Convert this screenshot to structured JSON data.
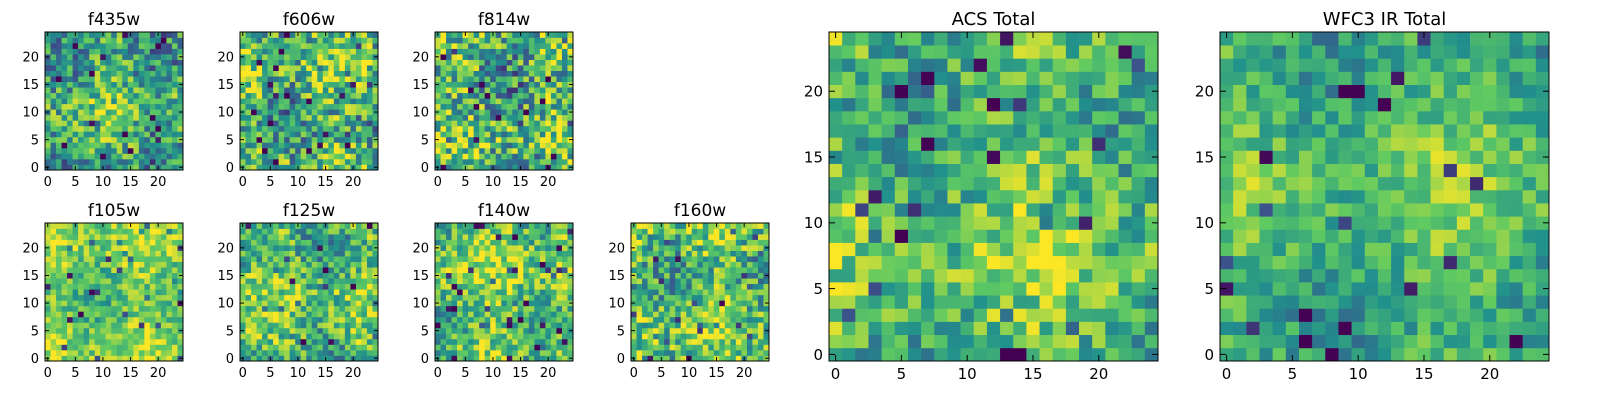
{
  "chart_data": [
    {
      "type": "heatmap",
      "title": "f435w",
      "xlim": [
        0,
        24
      ],
      "ylim": [
        0,
        24
      ],
      "xticks": [
        "0",
        "5",
        "10",
        "15",
        "20"
      ],
      "yticks": [
        "0",
        "5",
        "10",
        "15",
        "20"
      ],
      "mean": 0.62,
      "spread": 0.3,
      "seed": 11
    },
    {
      "type": "heatmap",
      "title": "f606w",
      "xlim": [
        0,
        24
      ],
      "ylim": [
        0,
        24
      ],
      "xticks": [
        "0",
        "5",
        "10",
        "15",
        "20"
      ],
      "yticks": [
        "0",
        "5",
        "10",
        "15",
        "20"
      ],
      "mean": 0.66,
      "spread": 0.34,
      "seed": 23
    },
    {
      "type": "heatmap",
      "title": "f814w",
      "xlim": [
        0,
        24
      ],
      "ylim": [
        0,
        24
      ],
      "xticks": [
        "0",
        "5",
        "10",
        "15",
        "20"
      ],
      "yticks": [
        "0",
        "5",
        "10",
        "15",
        "20"
      ],
      "mean": 0.64,
      "spread": 0.36,
      "seed": 37
    },
    {
      "type": "heatmap",
      "title": "f105w",
      "xlim": [
        0,
        24
      ],
      "ylim": [
        0,
        24
      ],
      "xticks": [
        "0",
        "5",
        "10",
        "15",
        "20"
      ],
      "yticks": [
        "0",
        "5",
        "10",
        "15",
        "20"
      ],
      "mean": 0.76,
      "spread": 0.2,
      "seed": 41
    },
    {
      "type": "heatmap",
      "title": "f125w",
      "xlim": [
        0,
        24
      ],
      "ylim": [
        0,
        24
      ],
      "xticks": [
        "0",
        "5",
        "10",
        "15",
        "20"
      ],
      "yticks": [
        "0",
        "5",
        "10",
        "15",
        "20"
      ],
      "mean": 0.7,
      "spread": 0.28,
      "seed": 53
    },
    {
      "type": "heatmap",
      "title": "f140w",
      "xlim": [
        0,
        24
      ],
      "ylim": [
        0,
        24
      ],
      "xticks": [
        "0",
        "5",
        "10",
        "15",
        "20"
      ],
      "yticks": [
        "0",
        "5",
        "10",
        "15",
        "20"
      ],
      "mean": 0.74,
      "spread": 0.26,
      "seed": 67
    },
    {
      "type": "heatmap",
      "title": "f160w",
      "xlim": [
        0,
        24
      ],
      "ylim": [
        0,
        24
      ],
      "xticks": [
        "0",
        "5",
        "10",
        "15",
        "20"
      ],
      "yticks": [
        "0",
        "5",
        "10",
        "15",
        "20"
      ],
      "mean": 0.7,
      "spread": 0.3,
      "seed": 79
    },
    {
      "type": "heatmap",
      "title": "ACS Total",
      "xlim": [
        0,
        24
      ],
      "ylim": [
        0,
        24
      ],
      "xticks": [
        "0",
        "5",
        "10",
        "15",
        "20"
      ],
      "yticks": [
        "0",
        "5",
        "10",
        "15",
        "20"
      ],
      "mean": 0.68,
      "spread": 0.24,
      "seed": 97
    },
    {
      "type": "heatmap",
      "title": "WFC3 IR Total",
      "xlim": [
        0,
        24
      ],
      "ylim": [
        0,
        24
      ],
      "xticks": [
        "0",
        "5",
        "10",
        "15",
        "20"
      ],
      "yticks": [
        "0",
        "5",
        "10",
        "15",
        "20"
      ],
      "mean": 0.66,
      "spread": 0.18,
      "seed": 113
    }
  ],
  "colormap": [
    "#440154",
    "#3b528b",
    "#21918c",
    "#5ec962",
    "#fde725"
  ]
}
